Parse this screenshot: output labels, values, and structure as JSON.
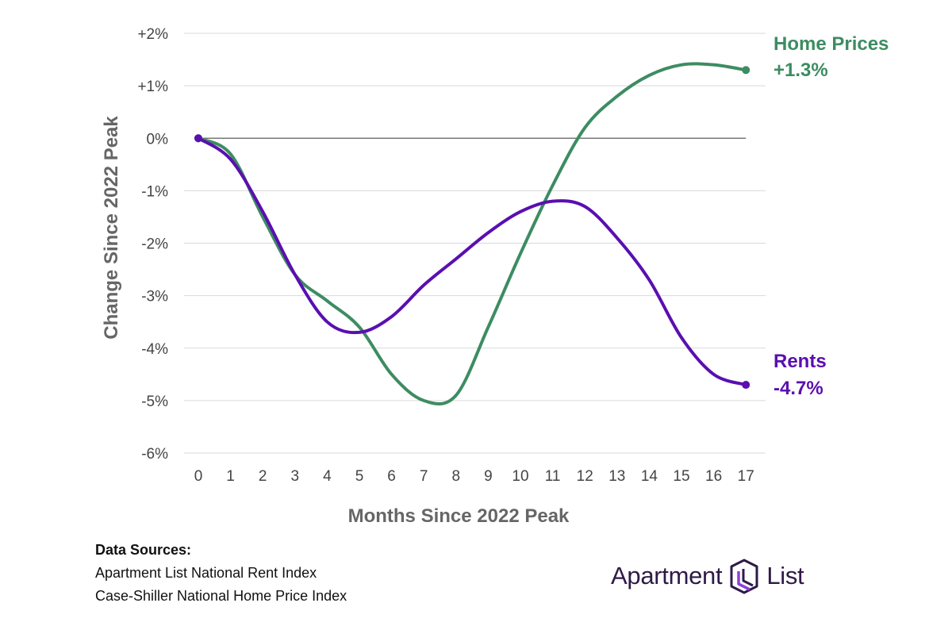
{
  "chart_data": {
    "type": "line",
    "xlabel": "Months Since 2022 Peak",
    "ylabel": "Change Since  2022 Peak",
    "x": [
      0,
      1,
      2,
      3,
      4,
      5,
      6,
      7,
      8,
      9,
      10,
      11,
      12,
      13,
      14,
      15,
      16,
      17
    ],
    "x_tick_labels": [
      "0",
      "1",
      "2",
      "3",
      "4",
      "5",
      "6",
      "7",
      "8",
      "9",
      "10",
      "11",
      "12",
      "13",
      "14",
      "15",
      "16",
      "17"
    ],
    "y_tick_labels": [
      "+2%",
      "+1%",
      "0%",
      "-1%",
      "-2%",
      "-3%",
      "-4%",
      "-5%",
      "-6%"
    ],
    "ylim": [
      -6,
      2
    ],
    "grid": true,
    "series": [
      {
        "name": "Home Prices",
        "end_value_label": "+1.3%",
        "color": "#3d8c62",
        "values": [
          0,
          -0.3,
          -1.5,
          -2.6,
          -3.1,
          -3.6,
          -4.5,
          -5.0,
          -4.9,
          -3.6,
          -2.2,
          -0.9,
          0.2,
          0.8,
          1.2,
          1.4,
          1.4,
          1.3
        ]
      },
      {
        "name": "Rents",
        "end_value_label": "-4.7%",
        "color": "#5a0fb0",
        "values": [
          0,
          -0.4,
          -1.4,
          -2.6,
          -3.5,
          -3.7,
          -3.4,
          -2.8,
          -2.3,
          -1.8,
          -1.4,
          -1.2,
          -1.3,
          -1.9,
          -2.7,
          -3.8,
          -4.5,
          -4.7
        ]
      }
    ]
  },
  "sources": {
    "heading": "Data Sources:",
    "lines": [
      "Apartment List National Rent Index",
      "Case-Shiller National Home Price Index"
    ]
  },
  "logo": {
    "left_text": "Apartment",
    "right_text": "List",
    "color": "#2e1a47",
    "accent": "#8e3fd6"
  }
}
